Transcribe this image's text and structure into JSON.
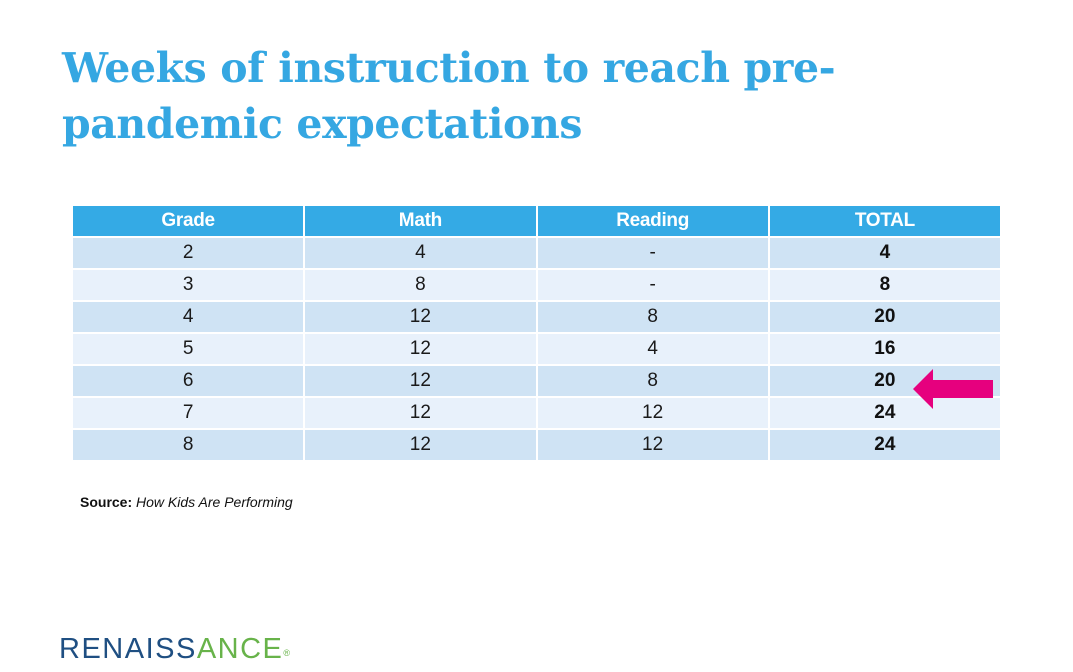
{
  "slide": {
    "title": "Weeks of instruction to reach pre-pandemic expectations"
  },
  "table": {
    "headers": [
      "Grade",
      "Math",
      "Reading",
      "TOTAL"
    ],
    "rows": [
      [
        "2",
        "4",
        "-",
        "4"
      ],
      [
        "3",
        "8",
        "-",
        "8"
      ],
      [
        "4",
        "12",
        "8",
        "20"
      ],
      [
        "5",
        "12",
        "4",
        "16"
      ],
      [
        "6",
        "12",
        "8",
        "20"
      ],
      [
        "7",
        "12",
        "12",
        "24"
      ],
      [
        "8",
        "12",
        "12",
        "24"
      ]
    ],
    "highlighted_row": 4
  },
  "source": {
    "label": "Source:",
    "text": "How Kids Are Performing"
  },
  "logo": {
    "part1": "RENAISS",
    "part2": "ANCE",
    "registered": "®"
  },
  "colors": {
    "title": "#35a7e2",
    "header_bg": "#34aae5",
    "row_odd": "#cfe3f4",
    "row_even": "#e8f1fb",
    "arrow": "#e6007e",
    "logo_blue": "#1f4f82",
    "logo_green": "#68b34a"
  },
  "icons": {
    "arrow": "left-arrow-icon"
  }
}
